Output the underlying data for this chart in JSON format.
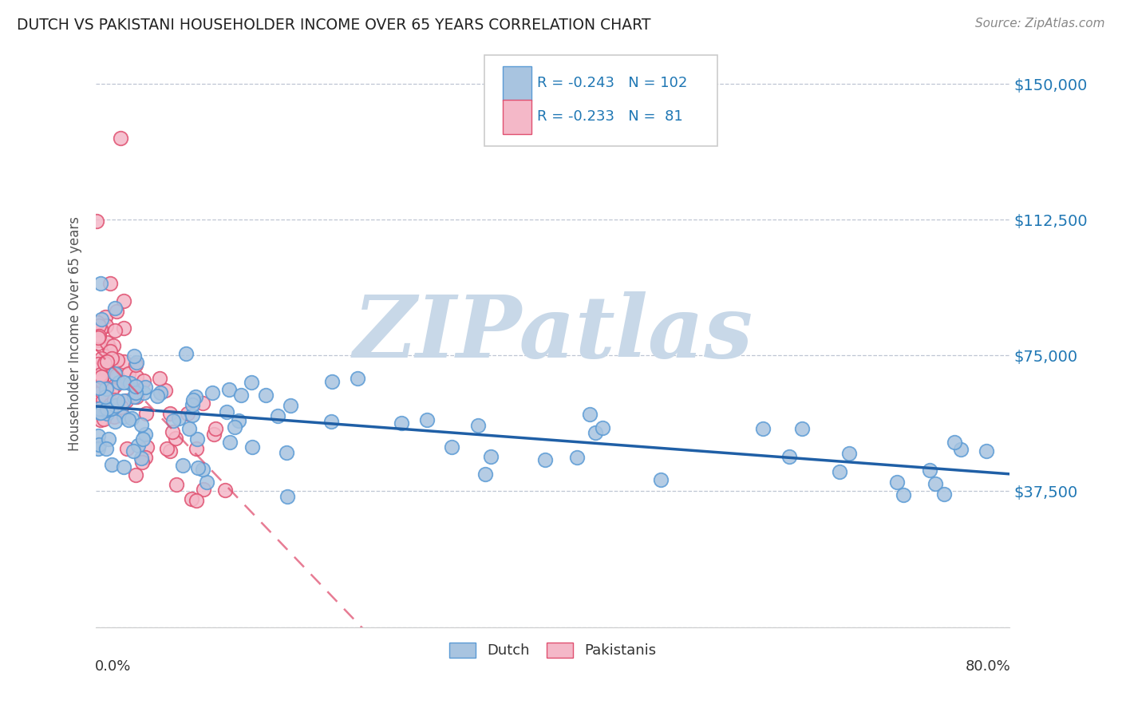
{
  "title": "DUTCH VS PAKISTANI HOUSEHOLDER INCOME OVER 65 YEARS CORRELATION CHART",
  "source": "Source: ZipAtlas.com",
  "ylabel": "Householder Income Over 65 years",
  "y_ticks": [
    0,
    37500,
    75000,
    112500,
    150000
  ],
  "y_tick_labels": [
    "",
    "$37,500",
    "$75,000",
    "$112,500",
    "$150,000"
  ],
  "x_range": [
    0.0,
    0.8
  ],
  "y_range": [
    0,
    162000
  ],
  "legend_dutch": "Dutch",
  "legend_pakistani": "Pakistanis",
  "dutch_R": "-0.243",
  "dutch_N": "102",
  "pakistani_R": "-0.233",
  "pakistani_N": "81",
  "dutch_color": "#a8c4e0",
  "dutch_edge_color": "#5b9bd5",
  "pakistani_color": "#f4b8c8",
  "pakistani_edge_color": "#e05070",
  "trend_dutch_color": "#1f5fa6",
  "trend_pakistani_color": "#e05070",
  "watermark": "ZIPatlas",
  "watermark_color": "#c8d8e8",
  "background_color": "#ffffff",
  "grid_color": "#b0b8c8",
  "title_color": "#222222",
  "axis_label_color": "#555555",
  "tick_label_color": "#1f77b4",
  "source_color": "#888888"
}
